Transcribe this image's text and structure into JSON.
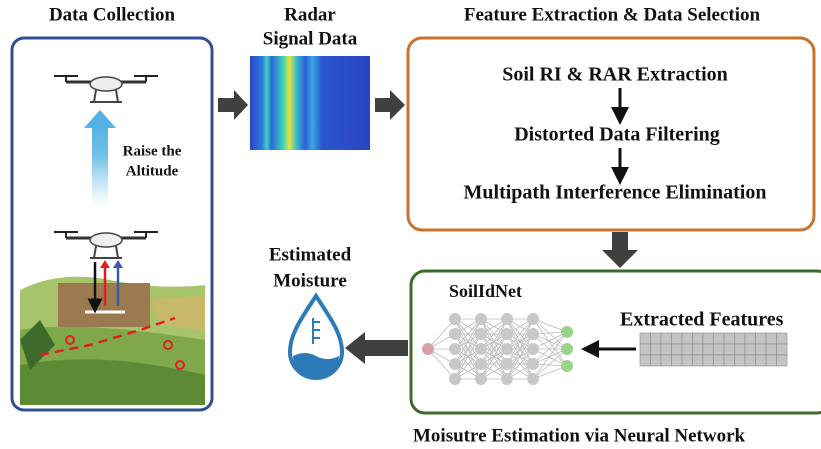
{
  "data_collection": {
    "title": "Data Collection",
    "annotation": [
      "Raise the",
      "Altitude"
    ]
  },
  "radar": {
    "title": [
      "Radar",
      "Signal Data"
    ]
  },
  "feature_extraction": {
    "title": "Feature Extraction & Data Selection",
    "steps": [
      "Soil RI & RAR Extraction",
      "Distorted Data Filtering",
      "Multipath Interference Elimination"
    ]
  },
  "neural_network": {
    "title": "Moisutre Estimation via Neural Network",
    "model": "SoilIdNet",
    "input": "Extracted Features"
  },
  "output": {
    "title": [
      "Estimated",
      "Moisture"
    ]
  }
}
